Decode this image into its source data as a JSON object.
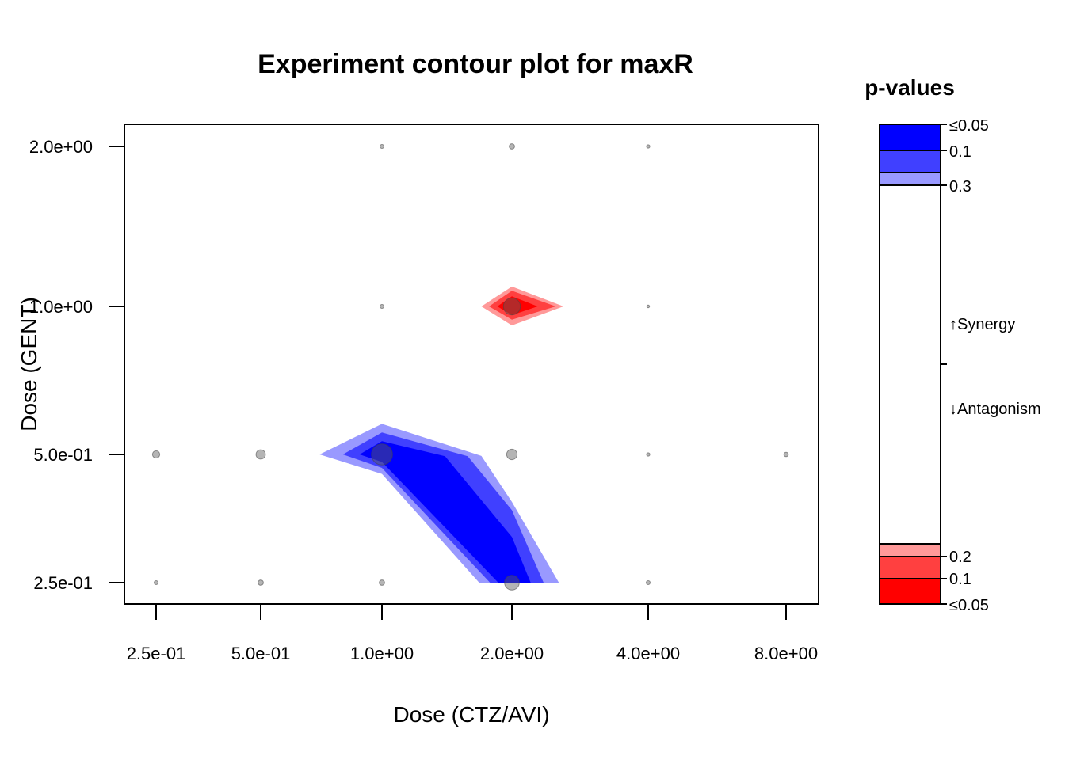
{
  "chart_data": {
    "type": "contour",
    "title": "Experiment  contour plot for maxR",
    "xlabel": "Dose (CTZ/AVI)",
    "ylabel": "Dose (GENT)",
    "x_ticks": [
      "2.5e-01",
      "5.0e-01",
      "1.0e+00",
      "2.0e+00",
      "4.0e+00",
      "8.0e+00"
    ],
    "x_values": [
      0.25,
      0.5,
      1,
      2,
      4,
      8
    ],
    "y_ticks": [
      "2.5e-01",
      "5.0e-01",
      "1.0e+00",
      "2.0e+00"
    ],
    "y_values": [
      0.25,
      0.5,
      1,
      2
    ],
    "points": [
      {
        "x": 1,
        "y": 2,
        "size": 1.0
      },
      {
        "x": 2,
        "y": 2,
        "size": 1.6
      },
      {
        "x": 4,
        "y": 2,
        "size": 0.7
      },
      {
        "x": 1,
        "y": 1,
        "size": 1.0
      },
      {
        "x": 2,
        "y": 1,
        "size": 7.0
      },
      {
        "x": 4,
        "y": 1,
        "size": 0.4
      },
      {
        "x": 0.25,
        "y": 0.5,
        "size": 2.5
      },
      {
        "x": 0.5,
        "y": 0.5,
        "size": 3.5
      },
      {
        "x": 1,
        "y": 0.5,
        "size": 9.0
      },
      {
        "x": 2,
        "y": 0.5,
        "size": 4.0
      },
      {
        "x": 4,
        "y": 0.5,
        "size": 0.7
      },
      {
        "x": 8,
        "y": 0.5,
        "size": 1.2
      },
      {
        "x": 0.25,
        "y": 0.25,
        "size": 1.0
      },
      {
        "x": 0.5,
        "y": 0.25,
        "size": 1.6
      },
      {
        "x": 1,
        "y": 0.25,
        "size": 1.6
      },
      {
        "x": 2,
        "y": 0.25,
        "size": 6.0
      },
      {
        "x": 4,
        "y": 0.25,
        "size": 1.0
      }
    ],
    "synergy_regions": [
      {
        "level": "0.3",
        "color": "#9999ff",
        "polygon": [
          [
            0.7,
            0.5
          ],
          [
            1,
            0.577
          ],
          [
            1.7,
            0.496
          ],
          [
            2,
            0.387
          ],
          [
            2.54,
            0.25
          ],
          [
            1.68,
            0.25
          ],
          [
            1,
            0.45
          ]
        ]
      },
      {
        "level": "0.1",
        "color": "#4040ff",
        "polygon": [
          [
            0.8,
            0.5
          ],
          [
            1,
            0.554
          ],
          [
            1.58,
            0.495
          ],
          [
            2,
            0.37
          ],
          [
            2.35,
            0.25
          ],
          [
            1.78,
            0.25
          ],
          [
            1,
            0.465
          ]
        ]
      },
      {
        "level": "≤0.05",
        "color": "#0000ff",
        "polygon": [
          [
            0.88,
            0.5
          ],
          [
            1,
            0.532
          ],
          [
            1.4,
            0.495
          ],
          [
            2,
            0.32
          ],
          [
            2.2,
            0.25
          ],
          [
            1.86,
            0.25
          ],
          [
            1,
            0.48
          ]
        ]
      }
    ],
    "antagonism_regions": [
      {
        "level": "0.2",
        "color": "#ff9999",
        "polygon": [
          [
            1.7,
            1.0
          ],
          [
            2,
            1.09
          ],
          [
            2.6,
            1.0
          ],
          [
            2,
            0.915
          ]
        ]
      },
      {
        "level": "0.1",
        "color": "#ff4040",
        "polygon": [
          [
            1.77,
            1.0
          ],
          [
            2,
            1.07
          ],
          [
            2.5,
            1.0
          ],
          [
            2,
            0.94
          ]
        ]
      },
      {
        "level": "≤0.05",
        "color": "#ff0000",
        "polygon": [
          [
            1.85,
            1.0
          ],
          [
            2,
            1.045
          ],
          [
            2.28,
            1.0
          ],
          [
            2,
            0.96
          ]
        ]
      }
    ],
    "legend": {
      "title": "p-values",
      "synergy_label": "↑Synergy",
      "antagonism_label": "↓Antagonism",
      "synergy_levels": [
        {
          "label": "≤0.05",
          "color": "#0000ff"
        },
        {
          "label": "0.1",
          "color": "#4040ff"
        },
        {
          "label": "0.3",
          "color": "#9999ff"
        }
      ],
      "antagonism_levels": [
        {
          "label": "0.2",
          "color": "#ff9999"
        },
        {
          "label": "0.1",
          "color": "#ff4040"
        },
        {
          "label": "≤0.05",
          "color": "#ff0000"
        }
      ]
    }
  }
}
